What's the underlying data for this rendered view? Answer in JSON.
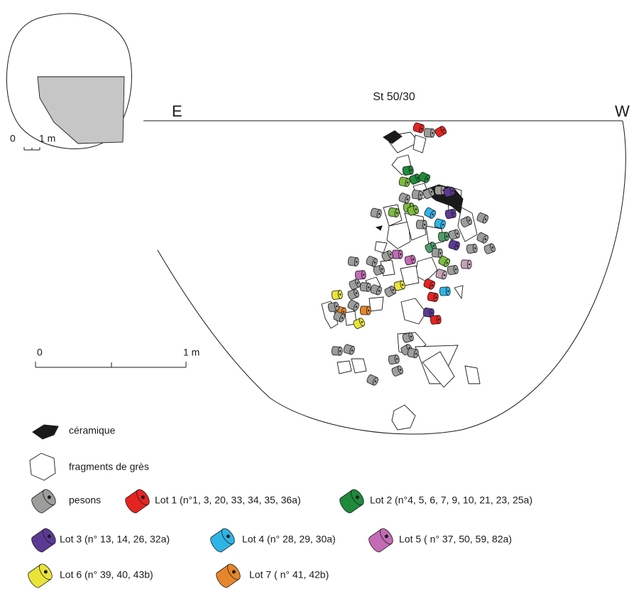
{
  "title": "St 50/30",
  "orientation": {
    "east": "E",
    "west": "W"
  },
  "inset_scale": {
    "start": "0",
    "end": "1 m"
  },
  "scale": {
    "start": "0",
    "end": "1 m"
  },
  "legend": [
    {
      "label": "céramique"
    },
    {
      "label": "fragments de grès"
    },
    {
      "label": "pesons"
    },
    {
      "label": "Lot 1 (n°1, 3, 20, 33, 34, 35, 36a)"
    },
    {
      "label": "Lot 2 (n°4, 5, 6, 7, 9, 10, 21, 23, 25a)"
    },
    {
      "label": "Lot 3 (n° 13, 14, 26, 32a)"
    },
    {
      "label": "Lot 4 (n° 28, 29, 30a)"
    },
    {
      "label": "Lot 5 ( n° 37, 50, 59, 82a)"
    },
    {
      "label": "Lot 6 (n° 39, 40, 43b)"
    },
    {
      "label": "Lot 7 ( n° 41, 42b)"
    }
  ]
}
